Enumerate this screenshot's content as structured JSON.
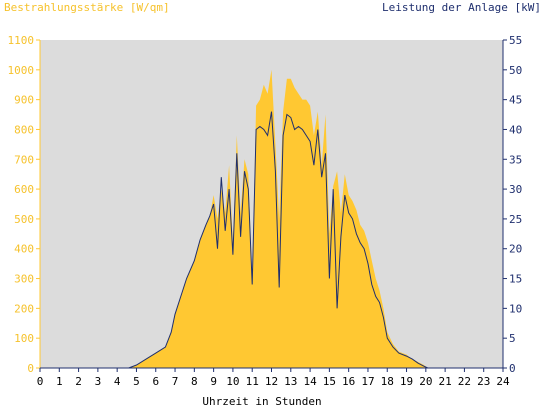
{
  "chart_data": {
    "type": "area",
    "title": "",
    "ylabel_left": "Bestrahlungsstärke [W/qm]",
    "ylabel_right": "Leistung der Anlage [kW]",
    "xlabel": "Uhrzeit in Stunden",
    "xlim": [
      0,
      24
    ],
    "ylim_left": [
      0,
      1100
    ],
    "ylim_right": [
      0,
      55
    ],
    "grid": false,
    "x_ticks": [
      "0",
      "1",
      "2",
      "3",
      "4",
      "5",
      "6",
      "7",
      "8",
      "9",
      "10",
      "11",
      "12",
      "13",
      "14",
      "15",
      "16",
      "17",
      "18",
      "19",
      "20",
      "21",
      "22",
      "23",
      "24"
    ],
    "y_ticks_left": [
      "0",
      "100",
      "200",
      "300",
      "400",
      "500",
      "600",
      "700",
      "800",
      "900",
      "1000",
      "1100"
    ],
    "y_ticks_right": [
      "0",
      "5",
      "10",
      "15",
      "20",
      "25",
      "30",
      "35",
      "40",
      "45",
      "50",
      "55"
    ],
    "colors": {
      "irradiance": "#ffc832",
      "power": "#1f2f6e",
      "plot_bg": "#dcdcdc",
      "left_text": "#f6c22c",
      "right_text": "#1f2f6e"
    },
    "series": [
      {
        "axis": "left",
        "style": "area",
        "x": [
          0,
          4.6,
          5.0,
          5.5,
          6.0,
          6.5,
          6.8,
          7.0,
          7.3,
          7.6,
          8.0,
          8.3,
          8.6,
          8.8,
          9.0,
          9.2,
          9.4,
          9.6,
          9.8,
          10.0,
          10.2,
          10.4,
          10.6,
          10.8,
          11.0,
          11.2,
          11.4,
          11.6,
          11.8,
          12.0,
          12.2,
          12.4,
          12.6,
          12.8,
          13.0,
          13.2,
          13.4,
          13.6,
          13.8,
          14.0,
          14.2,
          14.4,
          14.6,
          14.8,
          15.0,
          15.2,
          15.4,
          15.6,
          15.8,
          16.0,
          16.2,
          16.4,
          16.6,
          16.8,
          17.0,
          17.2,
          17.4,
          17.6,
          17.8,
          18.0,
          18.3,
          18.6,
          19.0,
          19.3,
          19.6,
          19.9,
          20.1,
          20.3,
          24
        ],
        "values": [
          0,
          0,
          10,
          30,
          50,
          70,
          120,
          180,
          240,
          300,
          360,
          430,
          480,
          510,
          580,
          500,
          600,
          520,
          680,
          420,
          780,
          520,
          700,
          650,
          300,
          880,
          900,
          950,
          920,
          1000,
          750,
          500,
          860,
          970,
          970,
          940,
          920,
          900,
          900,
          880,
          780,
          860,
          680,
          850,
          450,
          610,
          660,
          520,
          650,
          580,
          560,
          530,
          480,
          460,
          420,
          360,
          300,
          260,
          200,
          120,
          80,
          55,
          45,
          30,
          20,
          10,
          0,
          0,
          0
        ]
      },
      {
        "axis": "right",
        "style": "line",
        "x": [
          0,
          4.6,
          5.0,
          5.5,
          6.0,
          6.5,
          6.8,
          7.0,
          7.3,
          7.6,
          8.0,
          8.3,
          8.6,
          8.8,
          9.0,
          9.2,
          9.4,
          9.6,
          9.8,
          10.0,
          10.2,
          10.4,
          10.6,
          10.8,
          11.0,
          11.2,
          11.4,
          11.6,
          11.8,
          12.0,
          12.2,
          12.4,
          12.6,
          12.8,
          13.0,
          13.2,
          13.4,
          13.6,
          13.8,
          14.0,
          14.2,
          14.4,
          14.6,
          14.8,
          15.0,
          15.2,
          15.4,
          15.6,
          15.8,
          16.0,
          16.2,
          16.4,
          16.6,
          16.8,
          17.0,
          17.2,
          17.4,
          17.6,
          17.8,
          18.0,
          18.3,
          18.6,
          19.0,
          19.3,
          19.6,
          19.9,
          20.1,
          20.3,
          24
        ],
        "values": [
          0,
          0,
          0.5,
          1.5,
          2.5,
          3.5,
          6,
          9,
          12,
          15,
          18,
          21.5,
          24,
          25.5,
          27.5,
          20,
          32,
          23,
          30,
          19,
          36,
          22,
          33,
          30,
          14,
          40,
          40.5,
          40,
          39,
          43,
          33,
          13.5,
          39,
          42.5,
          42,
          40,
          40.5,
          40,
          39,
          38,
          34,
          40,
          32,
          36,
          15,
          30,
          10,
          22,
          29,
          26,
          25,
          22.5,
          21,
          20,
          17.5,
          14,
          12,
          11,
          8.5,
          5,
          3.5,
          2.5,
          2,
          1.5,
          0.8,
          0.3,
          0,
          0,
          0
        ]
      }
    ]
  }
}
